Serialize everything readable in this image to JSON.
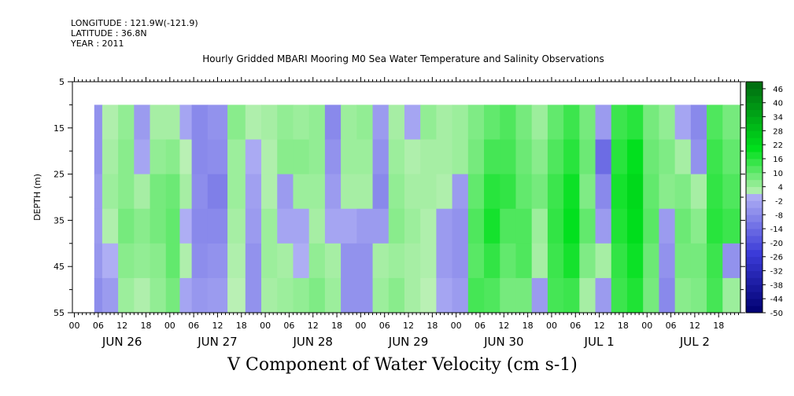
{
  "header": {
    "longitude": "LONGITUDE : 121.9W(-121.9)",
    "latitude": "LATITUDE : 36.8N",
    "year": "YEAR : 2011",
    "title": "Hourly Gridded MBARI Mooring M0 Sea Water Temperature and Salinity Observations"
  },
  "chart_data": {
    "type": "heatmap",
    "title": "V Component of Water Velocity (cm s-1)",
    "ylabel": "DEPTH (m)",
    "xlabel": "",
    "y_ticks": [
      "5",
      "15",
      "25",
      "35",
      "45",
      "55"
    ],
    "ylim": [
      55,
      5
    ],
    "data_depth_range": [
      10,
      55
    ],
    "x_hour_ticks": [
      "00",
      "06",
      "12",
      "18",
      "00",
      "06",
      "12",
      "18",
      "00",
      "06",
      "12",
      "18",
      "00",
      "06",
      "12",
      "18",
      "00",
      "06",
      "12",
      "18",
      "00",
      "06",
      "12",
      "18",
      "00",
      "06",
      "12",
      "18"
    ],
    "x_day_labels": [
      "JUN 26",
      "JUN 27",
      "JUN 28",
      "JUN 29",
      "JUN 30",
      "JUL  1",
      "JUL  2"
    ],
    "time_range_hours": [
      -0.5,
      167.5
    ],
    "data_time_start_hour": 5,
    "colorbar": {
      "labels": [
        "46",
        "40",
        "34",
        "28",
        "22",
        "16",
        "10",
        "4",
        "-2",
        "-8",
        "-14",
        "-20",
        "-26",
        "-32",
        "-38",
        "-44",
        "-50"
      ],
      "range": [
        -50,
        49
      ],
      "step": 3,
      "colors": {
        "neg_dark": "#000070",
        "neg_mid": "#3b3bd8",
        "neg_light": "#b3b3f5",
        "pos_light": "#b9f0b4",
        "pos_mid": "#00e01c",
        "pos_dark": "#006a10"
      }
    },
    "columns": [
      {
        "t": 5,
        "v": [
          -6,
          -6,
          -4,
          -4,
          -5,
          -7
        ]
      },
      {
        "t": 9,
        "v": [
          2,
          3,
          4,
          2,
          0,
          -4
        ]
      },
      {
        "t": 13,
        "v": [
          5,
          6,
          6,
          8,
          6,
          4
        ]
      },
      {
        "t": 17,
        "v": [
          -4,
          -2,
          3,
          6,
          5,
          2
        ]
      },
      {
        "t": 21,
        "v": [
          3,
          5,
          8,
          8,
          6,
          5
        ]
      },
      {
        "t": 25,
        "v": [
          3,
          6,
          9,
          10,
          10,
          8
        ]
      },
      {
        "t": 28,
        "v": [
          -2,
          1,
          3,
          0,
          2,
          -2
        ]
      },
      {
        "t": 31,
        "v": [
          -8,
          -8,
          -7,
          -8,
          -7,
          -5
        ]
      },
      {
        "t": 36,
        "v": [
          -6,
          -7,
          -10,
          -8,
          -6,
          -4
        ]
      },
      {
        "t": 41,
        "v": [
          6,
          4,
          4,
          3,
          2,
          1
        ]
      },
      {
        "t": 45,
        "v": [
          2,
          -1,
          -3,
          -4,
          -6,
          -6
        ]
      },
      {
        "t": 49,
        "v": [
          3,
          2,
          2,
          4,
          4,
          3
        ]
      },
      {
        "t": 53,
        "v": [
          5,
          6,
          -4,
          -2,
          3,
          4
        ]
      },
      {
        "t": 57,
        "v": [
          4,
          6,
          4,
          -2,
          0,
          5
        ]
      },
      {
        "t": 61,
        "v": [
          5,
          5,
          4,
          3,
          5,
          7
        ]
      },
      {
        "t": 65,
        "v": [
          -8,
          -6,
          -4,
          -2,
          3,
          4
        ]
      },
      {
        "t": 69,
        "v": [
          4,
          4,
          3,
          -2,
          -6,
          -6
        ]
      },
      {
        "t": 73,
        "v": [
          5,
          4,
          3,
          -4,
          -6,
          -6
        ]
      },
      {
        "t": 77,
        "v": [
          -4,
          -6,
          -8,
          -4,
          3,
          4
        ]
      },
      {
        "t": 81,
        "v": [
          3,
          4,
          5,
          6,
          4,
          6
        ]
      },
      {
        "t": 85,
        "v": [
          -2,
          2,
          3,
          4,
          3,
          3
        ]
      },
      {
        "t": 89,
        "v": [
          5,
          3,
          3,
          2,
          2,
          1
        ]
      },
      {
        "t": 93,
        "v": [
          3,
          3,
          2,
          -4,
          -4,
          -2
        ]
      },
      {
        "t": 97,
        "v": [
          4,
          4,
          -4,
          -6,
          -6,
          -4
        ]
      },
      {
        "t": 101,
        "v": [
          7,
          8,
          10,
          12,
          11,
          13
        ]
      },
      {
        "t": 105,
        "v": [
          10,
          13,
          16,
          18,
          15,
          12
        ]
      },
      {
        "t": 109,
        "v": [
          12,
          13,
          15,
          12,
          10,
          8
        ]
      },
      {
        "t": 113,
        "v": [
          8,
          9,
          10,
          12,
          12,
          8
        ]
      },
      {
        "t": 117,
        "v": [
          4,
          6,
          8,
          4,
          3,
          -4
        ]
      },
      {
        "t": 121,
        "v": [
          10,
          12,
          14,
          15,
          14,
          13
        ]
      },
      {
        "t": 125,
        "v": [
          14,
          16,
          19,
          20,
          18,
          14
        ]
      },
      {
        "t": 129,
        "v": [
          8,
          9,
          7,
          10,
          7,
          3
        ]
      },
      {
        "t": 133,
        "v": [
          -4,
          -14,
          -8,
          -4,
          3,
          -4
        ]
      },
      {
        "t": 137,
        "v": [
          14,
          16,
          18,
          17,
          15,
          14
        ]
      },
      {
        "t": 141,
        "v": [
          16,
          20,
          22,
          21,
          19,
          17
        ]
      },
      {
        "t": 145,
        "v": [
          8,
          9,
          10,
          11,
          9,
          8
        ]
      },
      {
        "t": 149,
        "v": [
          5,
          7,
          6,
          -4,
          -6,
          -8
        ]
      },
      {
        "t": 153,
        "v": [
          -2,
          3,
          7,
          9,
          8,
          6
        ]
      },
      {
        "t": 157,
        "v": [
          -8,
          -6,
          3,
          6,
          8,
          7
        ]
      },
      {
        "t": 161,
        "v": [
          12,
          14,
          15,
          16,
          14,
          13
        ]
      },
      {
        "t": 165,
        "v": [
          8,
          10,
          12,
          14,
          -6,
          4
        ]
      }
    ]
  }
}
